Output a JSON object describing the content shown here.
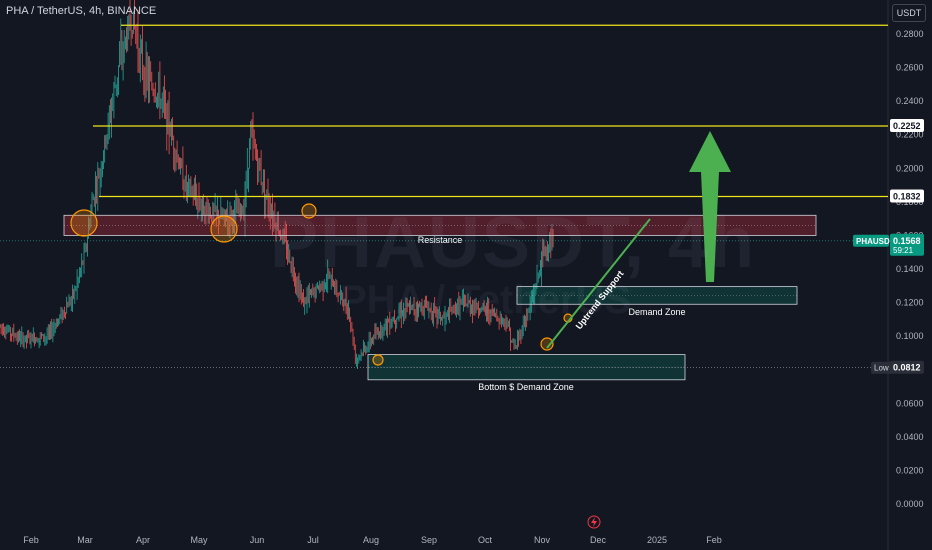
{
  "header": {
    "title": "PHA / TetherUS, 4h, BINANCE",
    "currency": "USDT"
  },
  "watermark": {
    "symbol": "PHAUSDT, 4h",
    "name": "PHA / TetherUS"
  },
  "colors": {
    "background": "#131722",
    "up": "#26a69a",
    "down": "#ef5350",
    "level": "#f0e41b",
    "zone_red": "#f23645",
    "zone_green": "#089981",
    "arrow": "#4caf50"
  },
  "chart_data": {
    "type": "candlestick",
    "title": "PHA / TetherUS, 4h, BINANCE",
    "ylim": [
      0.0,
      0.29
    ],
    "y_ticks": [
      "0.0000",
      "0.0200",
      "0.0400",
      "0.0600",
      "0.0800",
      "0.1000",
      "0.1200",
      "0.1400",
      "0.1600",
      "0.1800",
      "0.2000",
      "0.2200",
      "0.2400",
      "0.2600",
      "0.2800"
    ],
    "x_ticks": [
      "Feb",
      "Mar",
      "Apr",
      "May",
      "Jun",
      "Jul",
      "Aug",
      "Sep",
      "Oct",
      "Nov",
      "Dec",
      "2025",
      "Feb"
    ],
    "price_path": [
      [
        "Jan 10",
        0.108
      ],
      [
        "Jan 25",
        0.098
      ],
      [
        "Feb 10",
        0.1
      ],
      [
        "Feb 25",
        0.125
      ],
      [
        "Mar 1",
        0.15
      ],
      [
        "Mar 5",
        0.18
      ],
      [
        "Mar 10",
        0.2
      ],
      [
        "Mar 20",
        0.26
      ],
      [
        "Mar 28",
        0.29
      ],
      [
        "Apr 5",
        0.255
      ],
      [
        "Apr 15",
        0.24
      ],
      [
        "Apr 28",
        0.19
      ],
      [
        "May 10",
        0.175
      ],
      [
        "May 20",
        0.17
      ],
      [
        "Jun 1",
        0.175
      ],
      [
        "Jun 5",
        0.22
      ],
      [
        "Jun 15",
        0.18
      ],
      [
        "Jun 25",
        0.155
      ],
      [
        "Jul 5",
        0.12
      ],
      [
        "Jul 20",
        0.135
      ],
      [
        "Aug 1",
        0.115
      ],
      [
        "Aug 5",
        0.086
      ],
      [
        "Aug 20",
        0.105
      ],
      [
        "Sep 1",
        0.115
      ],
      [
        "Sep 15",
        0.118
      ],
      [
        "Sep 25",
        0.11
      ],
      [
        "Oct 5",
        0.12
      ],
      [
        "Oct 20",
        0.115
      ],
      [
        "Nov 1",
        0.108
      ],
      [
        "Nov 5",
        0.092
      ],
      [
        "Nov 15",
        0.12
      ],
      [
        "Nov 22",
        0.15
      ],
      [
        "Nov 28",
        0.1568
      ]
    ],
    "levels": [
      {
        "price": 0.2852,
        "label": ""
      },
      {
        "price": 0.2252,
        "label": "0.2252"
      },
      {
        "price": 0.1832,
        "label": "0.1832"
      }
    ],
    "zones": [
      {
        "name": "resistance",
        "label": "Resistance",
        "top": 0.172,
        "bottom": 0.16
      },
      {
        "name": "demand",
        "label": "Demand Zone",
        "top": 0.1295,
        "bottom": 0.119
      },
      {
        "name": "bottom-demand",
        "label": "Bottom $ Demand Zone",
        "top": 0.089,
        "bottom": 0.074
      }
    ],
    "current_price": {
      "symbol": "PHAUSDT",
      "value": "0.1568",
      "timer": "59:21"
    },
    "low": {
      "label": "Low",
      "value": "0.0812"
    },
    "trendline_label": "Uptrend Support"
  }
}
